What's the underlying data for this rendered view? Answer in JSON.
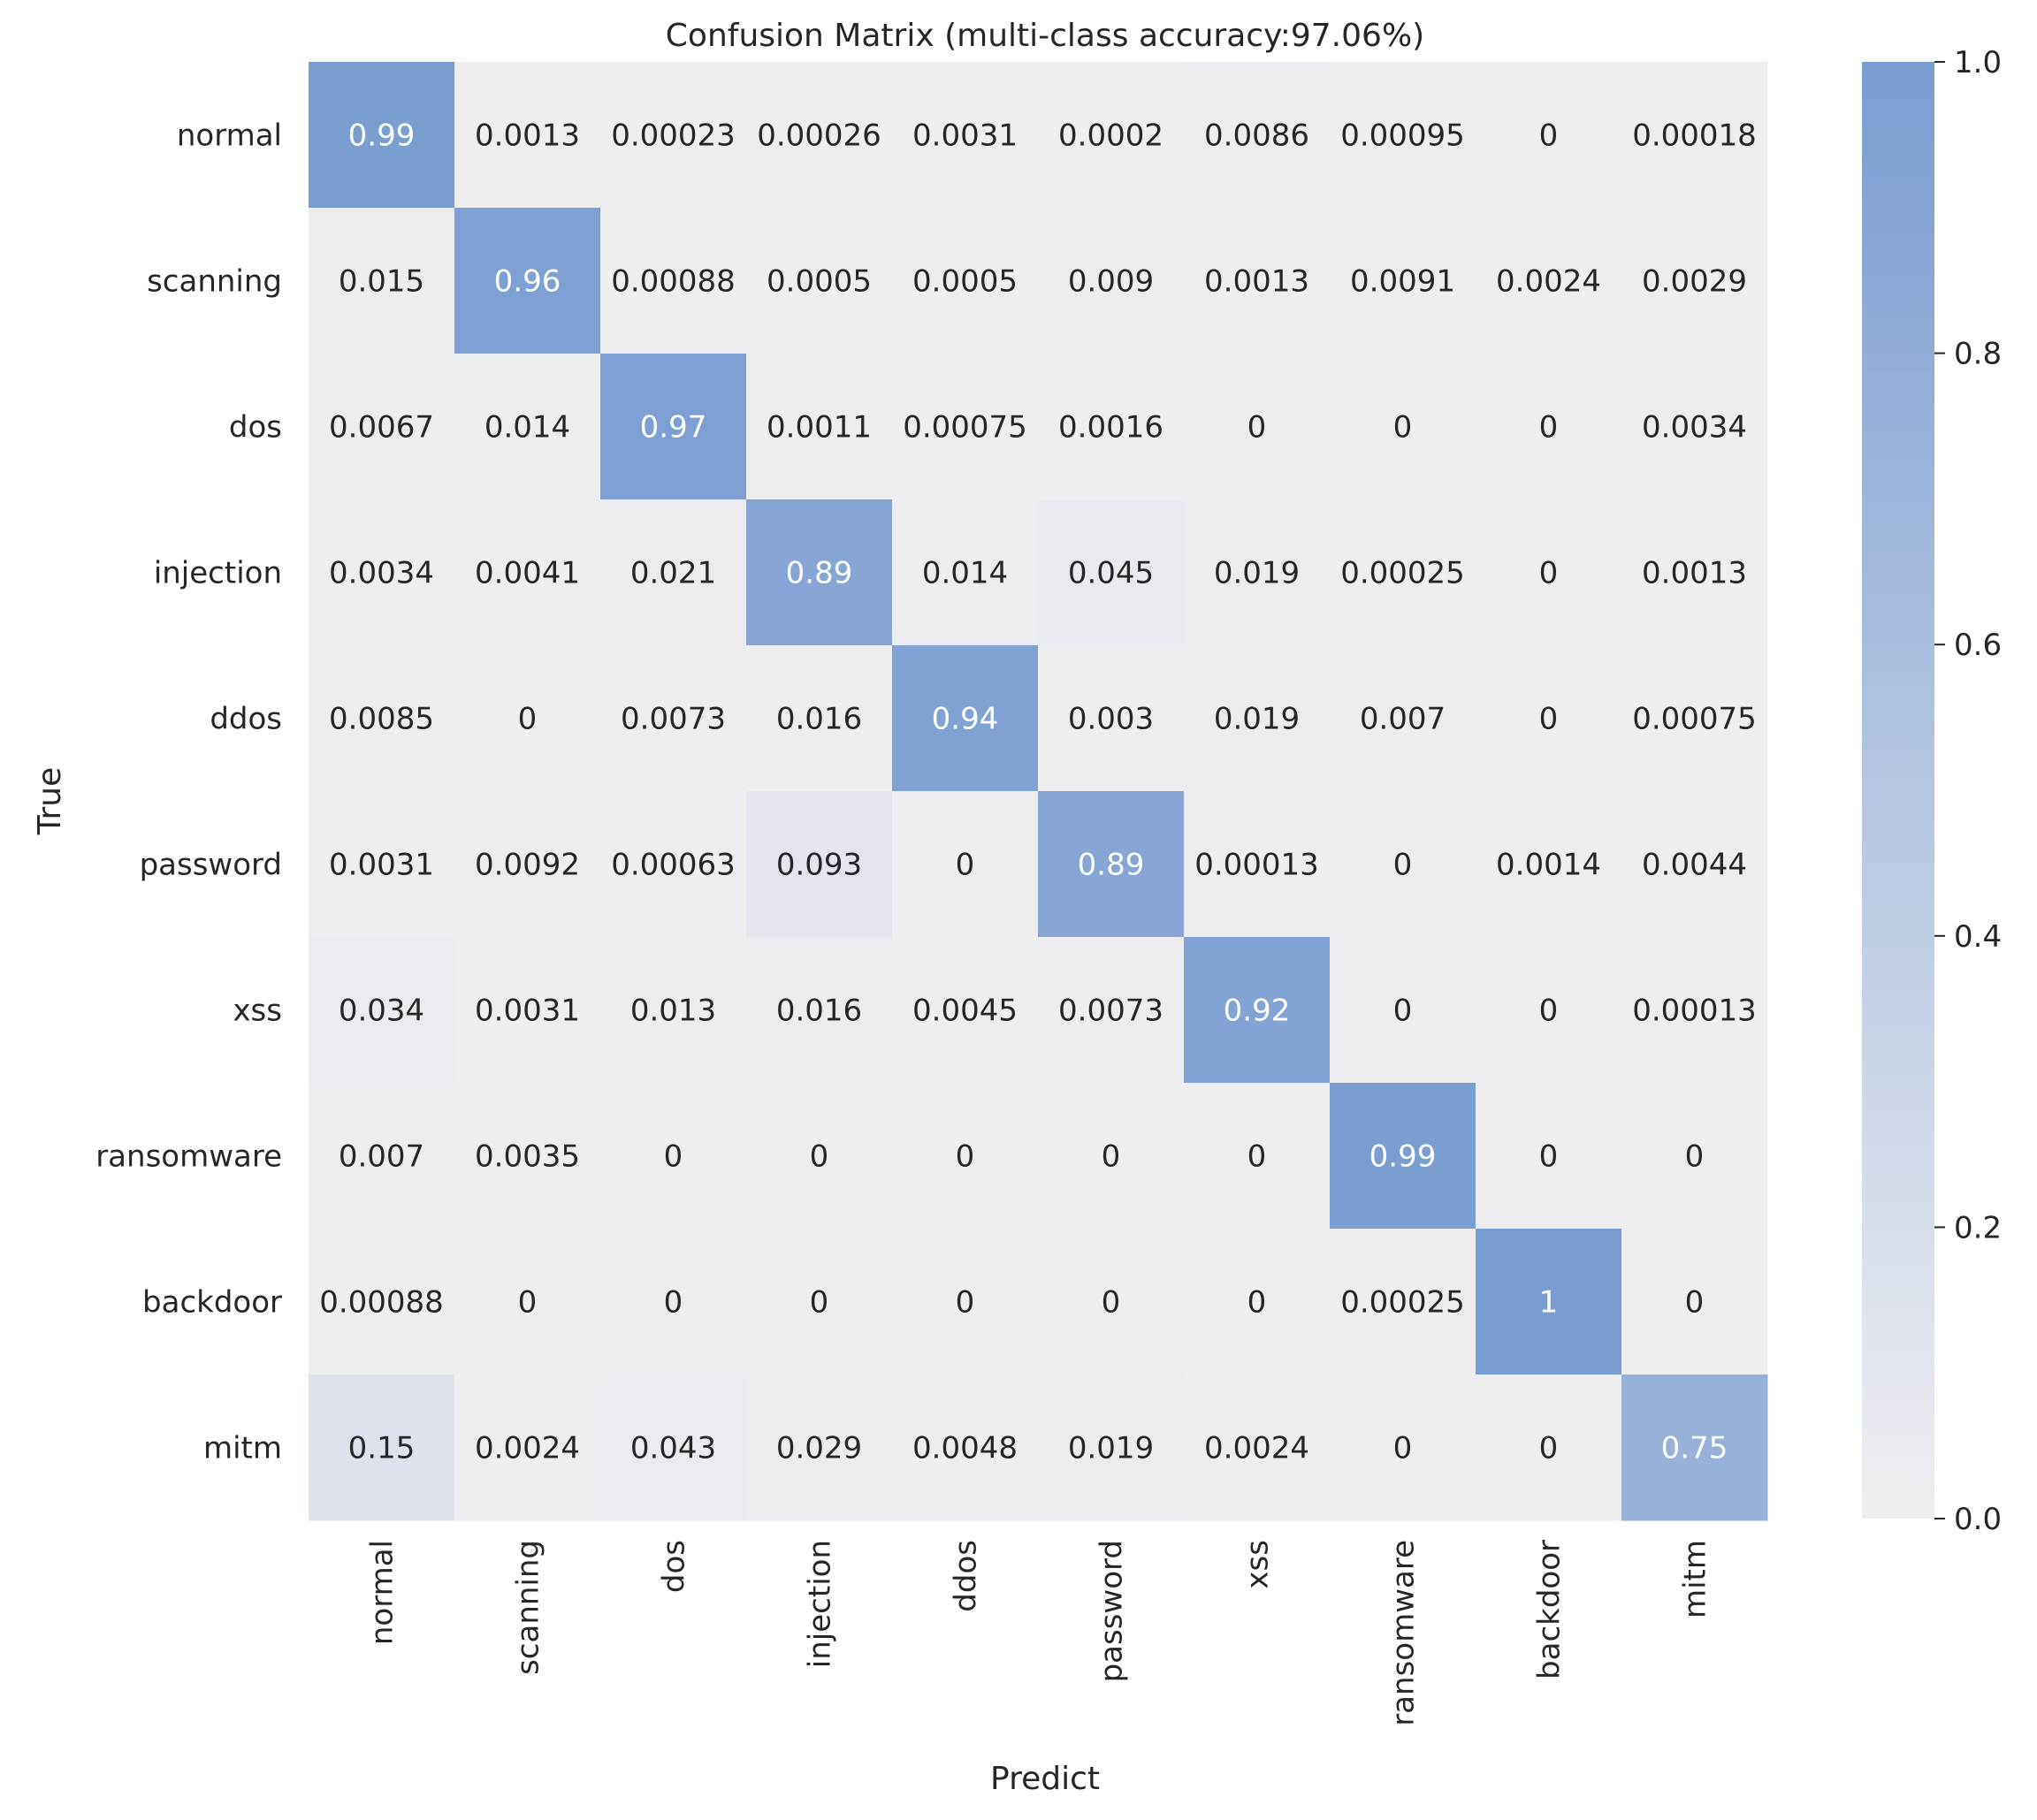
{
  "chart_data": {
    "type": "heatmap",
    "title": "Confusion Matrix (multi-class accuracy:97.06%)",
    "xlabel": "Predict",
    "ylabel": "True",
    "x_categories": [
      "normal",
      "scanning",
      "dos",
      "injection",
      "ddos",
      "password",
      "xss",
      "ransomware",
      "backdoor",
      "mitm"
    ],
    "y_categories": [
      "normal",
      "scanning",
      "dos",
      "injection",
      "ddos",
      "password",
      "xss",
      "ransomware",
      "backdoor",
      "mitm"
    ],
    "values": [
      [
        0.99,
        0.0013,
        0.00023,
        0.00026,
        0.0031,
        0.0002,
        0.0086,
        0.00095,
        0,
        0.00018
      ],
      [
        0.015,
        0.96,
        0.00088,
        0.0005,
        0.0005,
        0.009,
        0.0013,
        0.0091,
        0.0024,
        0.0029
      ],
      [
        0.0067,
        0.014,
        0.97,
        0.0011,
        0.00075,
        0.0016,
        0,
        0,
        0,
        0.0034
      ],
      [
        0.0034,
        0.0041,
        0.021,
        0.89,
        0.014,
        0.045,
        0.019,
        0.00025,
        0,
        0.0013
      ],
      [
        0.0085,
        0,
        0.0073,
        0.016,
        0.94,
        0.003,
        0.019,
        0.007,
        0,
        0.00075
      ],
      [
        0.0031,
        0.0092,
        0.00063,
        0.093,
        0,
        0.89,
        0.00013,
        0,
        0.0014,
        0.0044
      ],
      [
        0.034,
        0.0031,
        0.013,
        0.016,
        0.0045,
        0.0073,
        0.92,
        0,
        0,
        0.00013
      ],
      [
        0.007,
        0.0035,
        0,
        0,
        0,
        0,
        0,
        0.99,
        0,
        0
      ],
      [
        0.00088,
        0,
        0,
        0,
        0,
        0,
        0,
        0.00025,
        1,
        0
      ],
      [
        0.15,
        0.0024,
        0.043,
        0.029,
        0.0048,
        0.019,
        0.0024,
        0,
        0,
        0.75
      ]
    ],
    "labels": [
      [
        "0.99",
        "0.0013",
        "0.00023",
        "0.00026",
        "0.0031",
        "0.0002",
        "0.0086",
        "0.00095",
        "0",
        "0.00018"
      ],
      [
        "0.015",
        "0.96",
        "0.00088",
        "0.0005",
        "0.0005",
        "0.009",
        "0.0013",
        "0.0091",
        "0.0024",
        "0.0029"
      ],
      [
        "0.0067",
        "0.014",
        "0.97",
        "0.0011",
        "0.00075",
        "0.0016",
        "0",
        "0",
        "0",
        "0.0034"
      ],
      [
        "0.0034",
        "0.0041",
        "0.021",
        "0.89",
        "0.014",
        "0.045",
        "0.019",
        "0.00025",
        "0",
        "0.0013"
      ],
      [
        "0.0085",
        "0",
        "0.0073",
        "0.016",
        "0.94",
        "0.003",
        "0.019",
        "0.007",
        "0",
        "0.00075"
      ],
      [
        "0.0031",
        "0.0092",
        "0.00063",
        "0.093",
        "0",
        "0.89",
        "0.00013",
        "0",
        "0.0014",
        "0.0044"
      ],
      [
        "0.034",
        "0.0031",
        "0.013",
        "0.016",
        "0.0045",
        "0.0073",
        "0.92",
        "0",
        "0",
        "0.00013"
      ],
      [
        "0.007",
        "0.0035",
        "0",
        "0",
        "0",
        "0",
        "0",
        "0.99",
        "0",
        "0"
      ],
      [
        "0.00088",
        "0",
        "0",
        "0",
        "0",
        "0",
        "0",
        "0.00025",
        "1",
        "0"
      ],
      [
        "0.15",
        "0.0024",
        "0.043",
        "0.029",
        "0.0048",
        "0.019",
        "0.0024",
        "0",
        "0",
        "0.75"
      ]
    ],
    "colorbar": {
      "vmin": 0.0,
      "vmax": 1.0,
      "ticks": [
        0.0,
        0.2,
        0.4,
        0.6,
        0.8,
        1.0
      ],
      "tick_labels": [
        "0.0",
        "0.2",
        "0.4",
        "0.6",
        "0.8",
        "1.0"
      ],
      "color_low": "#eeeef1",
      "color_high": "#7a9dd1"
    },
    "grid": false,
    "legend": "right (colorbar)"
  },
  "colors": {
    "text_dark": "#262626",
    "text_light": "#ffffff",
    "background": "#ffffff"
  }
}
